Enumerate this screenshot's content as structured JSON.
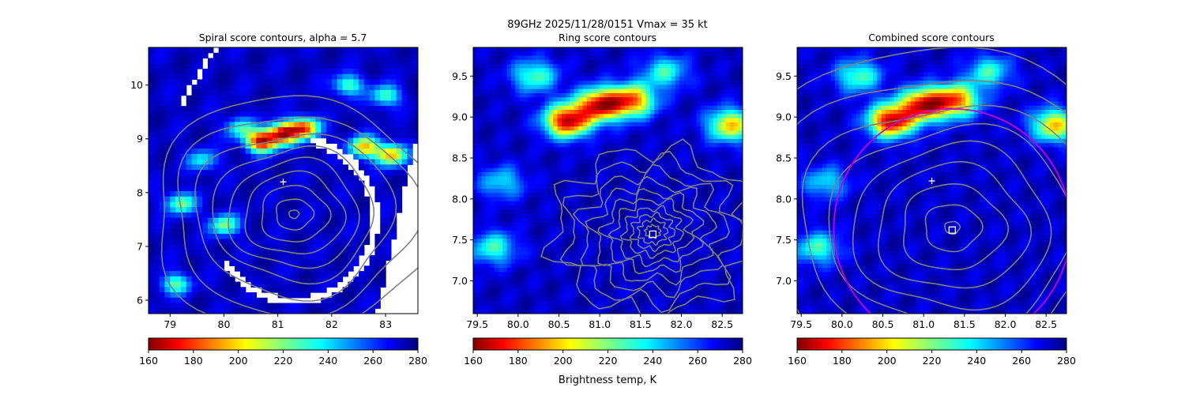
{
  "suptitle": "89GHz  2025/11/28/0151    Vmax = 35 kt",
  "colorbar_label": "Brightness temp, K",
  "colormap": "jet_reversed",
  "colors": {
    "contour": "#808080",
    "fit_circle": "#cc00cc",
    "marker": "#ffffff"
  },
  "chart_data": [
    {
      "type": "heatmap",
      "title": "Spiral score contours, alpha =  5.7",
      "xlim": [
        78.6,
        83.6
      ],
      "ylim": [
        5.75,
        10.7
      ],
      "xticks": [
        79,
        80,
        81,
        82,
        83
      ],
      "xtick_labels": [
        "79",
        "80",
        "81",
        "82",
        "83"
      ],
      "yticks": [
        6,
        7,
        8,
        9,
        10
      ],
      "ytick_labels": [
        "6",
        "7",
        "8",
        "9",
        "10"
      ],
      "colorbar": {
        "range": [
          160,
          280
        ],
        "ticks": [
          160,
          180,
          200,
          220,
          240,
          260,
          280
        ]
      },
      "hot_spots": [
        {
          "x": 80.7,
          "y": 8.95,
          "tb": 170
        },
        {
          "x": 81.1,
          "y": 9.1,
          "tb": 175
        },
        {
          "x": 81.5,
          "y": 9.2,
          "tb": 185
        },
        {
          "x": 82.6,
          "y": 8.85,
          "tb": 200
        },
        {
          "x": 83.1,
          "y": 8.7,
          "tb": 195
        },
        {
          "x": 82.3,
          "y": 10.0,
          "tb": 225
        },
        {
          "x": 83.0,
          "y": 9.8,
          "tb": 225
        },
        {
          "x": 79.2,
          "y": 7.8,
          "tb": 220
        },
        {
          "x": 80.0,
          "y": 7.4,
          "tb": 220
        },
        {
          "x": 79.1,
          "y": 6.3,
          "tb": 225
        },
        {
          "x": 80.3,
          "y": 9.2,
          "tb": 230
        },
        {
          "x": 79.6,
          "y": 8.6,
          "tb": 235
        }
      ],
      "contour_center": {
        "x": 81.3,
        "y": 7.6
      },
      "cross_marker": {
        "x": 81.1,
        "y": 8.2
      }
    },
    {
      "type": "heatmap",
      "title": "Ring score contours",
      "xlim": [
        79.45,
        82.75
      ],
      "ylim": [
        6.6,
        9.85
      ],
      "xticks": [
        79.5,
        80.0,
        80.5,
        81.0,
        81.5,
        82.0,
        82.5
      ],
      "xtick_labels": [
        "79.5",
        "80.0",
        "80.5",
        "81.0",
        "81.5",
        "82.0",
        "82.5"
      ],
      "yticks": [
        7.0,
        7.5,
        8.0,
        8.5,
        9.0,
        9.5
      ],
      "ytick_labels": [
        "7.0",
        "7.5",
        "8.0",
        "8.5",
        "9.0",
        "9.5"
      ],
      "colorbar": {
        "range": [
          160,
          280
        ],
        "ticks": [
          160,
          180,
          200,
          220,
          240,
          260,
          280
        ]
      },
      "hot_spots": [
        {
          "x": 80.6,
          "y": 8.95,
          "tb": 168
        },
        {
          "x": 81.0,
          "y": 9.15,
          "tb": 175
        },
        {
          "x": 81.4,
          "y": 9.2,
          "tb": 190
        },
        {
          "x": 82.6,
          "y": 8.9,
          "tb": 200
        },
        {
          "x": 80.2,
          "y": 9.5,
          "tb": 225
        },
        {
          "x": 79.7,
          "y": 7.4,
          "tb": 228
        },
        {
          "x": 79.8,
          "y": 8.2,
          "tb": 238
        },
        {
          "x": 81.8,
          "y": 9.55,
          "tb": 230
        }
      ],
      "contour_center": {
        "x": 81.65,
        "y": 7.6
      },
      "square_marker": {
        "x": 81.65,
        "y": 7.57
      }
    },
    {
      "type": "heatmap",
      "title": "Combined score contours",
      "xlim": [
        79.45,
        82.75
      ],
      "ylim": [
        6.6,
        9.85
      ],
      "xticks": [
        79.5,
        80.0,
        80.5,
        81.0,
        81.5,
        82.0,
        82.5
      ],
      "xtick_labels": [
        "79.5",
        "80.0",
        "80.5",
        "81.0",
        "81.5",
        "82.0",
        "82.5"
      ],
      "yticks": [
        7.0,
        7.5,
        8.0,
        8.5,
        9.0,
        9.5
      ],
      "ytick_labels": [
        "7.0",
        "7.5",
        "8.0",
        "8.5",
        "9.0",
        "9.5"
      ],
      "colorbar": {
        "range": [
          160,
          280
        ],
        "ticks": [
          160,
          180,
          200,
          220,
          240,
          260,
          280
        ]
      },
      "hot_spots": [
        {
          "x": 80.6,
          "y": 8.95,
          "tb": 168
        },
        {
          "x": 81.0,
          "y": 9.15,
          "tb": 175
        },
        {
          "x": 81.4,
          "y": 9.2,
          "tb": 190
        },
        {
          "x": 82.6,
          "y": 8.9,
          "tb": 200
        },
        {
          "x": 80.2,
          "y": 9.5,
          "tb": 225
        },
        {
          "x": 79.7,
          "y": 7.4,
          "tb": 228
        },
        {
          "x": 79.8,
          "y": 8.2,
          "tb": 238
        },
        {
          "x": 81.8,
          "y": 9.55,
          "tb": 230
        }
      ],
      "contour_center": {
        "x": 81.35,
        "y": 7.65
      },
      "square_marker": {
        "x": 81.35,
        "y": 7.62
      },
      "cross_marker": {
        "x": 81.1,
        "y": 8.22
      },
      "fit_circle": {
        "cx": 81.35,
        "cy": 7.65,
        "r": 1.45
      }
    }
  ]
}
